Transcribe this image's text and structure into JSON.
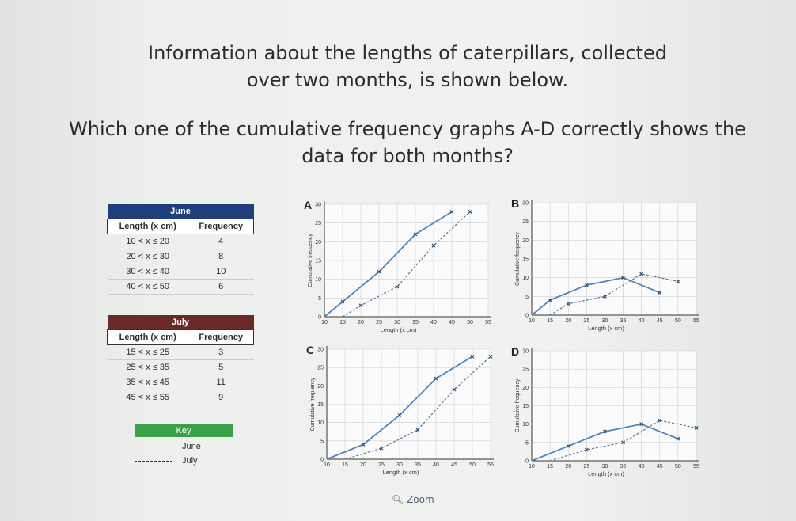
{
  "intro": "Information about the lengths of caterpillars, collected over two months, is shown below.",
  "prompt": "Which one of the cumulative frequency graphs A-D correctly shows the data for both months?",
  "tables": [
    {
      "title": "June",
      "headers": [
        "Length (x cm)",
        "Frequency"
      ],
      "color": "#1f3f7a",
      "rows": [
        [
          "10 < x ≤ 20",
          4
        ],
        [
          "20 < x ≤ 30",
          8
        ],
        [
          "30 < x ≤ 40",
          10
        ],
        [
          "40 < x ≤ 50",
          6
        ]
      ]
    },
    {
      "title": "July",
      "headers": [
        "Length (x cm)",
        "Frequency"
      ],
      "color": "#6b2a2a",
      "rows": [
        [
          "15 < x ≤ 25",
          3
        ],
        [
          "25 < x ≤ 35",
          5
        ],
        [
          "35 < x ≤ 45",
          11
        ],
        [
          "45 < x ≤ 55",
          9
        ]
      ]
    }
  ],
  "key": {
    "title": "Key",
    "color": "#3aa04a",
    "entries": [
      {
        "name": "June",
        "line_style": "solid"
      },
      {
        "name": "July",
        "line_style": "dashed"
      }
    ]
  },
  "graphs": [
    {
      "label": "A",
      "ylabel": "Cumulative frequency",
      "xlabel": "Length (x cm)",
      "xlim": [
        10,
        55
      ],
      "ylim": [
        0,
        30
      ],
      "xticks": [
        10,
        15,
        20,
        25,
        30,
        35,
        40,
        45,
        50,
        55
      ],
      "yticks": [
        0,
        5,
        10,
        15,
        20,
        25,
        30
      ],
      "series": [
        {
          "name": "June",
          "color": "#4f86b8",
          "line_style": "solid",
          "x": [
            10,
            15,
            25,
            35,
            45
          ],
          "values": [
            0,
            4,
            12,
            22,
            28
          ]
        },
        {
          "name": "July",
          "color": "#60748a",
          "line_style": "dashed",
          "x": [
            15,
            20,
            30,
            40,
            50
          ],
          "values": [
            0,
            3,
            8,
            19,
            28
          ]
        }
      ]
    },
    {
      "label": "B",
      "ylabel": "Cumulative frequency",
      "xlabel": "Length (x cm)",
      "xlim": [
        10,
        55
      ],
      "ylim": [
        0,
        30
      ],
      "xticks": [
        10,
        15,
        20,
        25,
        30,
        35,
        40,
        45,
        50,
        55
      ],
      "yticks": [
        0,
        5,
        10,
        15,
        20,
        25,
        30
      ],
      "series": [
        {
          "name": "June",
          "color": "#4f86b8",
          "line_style": "solid",
          "x": [
            10,
            15,
            25,
            35,
            45
          ],
          "values": [
            0,
            4,
            8,
            10,
            6
          ]
        },
        {
          "name": "July",
          "color": "#60748a",
          "line_style": "dashed",
          "x": [
            15,
            20,
            30,
            40,
            50
          ],
          "values": [
            0,
            3,
            5,
            11,
            9
          ]
        }
      ]
    },
    {
      "label": "C",
      "ylabel": "Cumulative frequency",
      "xlabel": "Length (x cm)",
      "xlim": [
        10,
        55
      ],
      "ylim": [
        0,
        30
      ],
      "xticks": [
        10,
        15,
        20,
        25,
        30,
        35,
        40,
        45,
        50,
        55
      ],
      "yticks": [
        0,
        5,
        10,
        15,
        20,
        25,
        30
      ],
      "series": [
        {
          "name": "June",
          "color": "#4f86b8",
          "line_style": "solid",
          "x": [
            10,
            20,
            30,
            40,
            50
          ],
          "values": [
            0,
            4,
            12,
            22,
            28
          ]
        },
        {
          "name": "July",
          "color": "#60748a",
          "line_style": "dashed",
          "x": [
            15,
            25,
            35,
            45,
            55
          ],
          "values": [
            0,
            3,
            8,
            19,
            28
          ]
        }
      ]
    },
    {
      "label": "D",
      "ylabel": "Cumulative frequency",
      "xlabel": "Length (x cm)",
      "xlim": [
        10,
        55
      ],
      "ylim": [
        0,
        30
      ],
      "xticks": [
        10,
        15,
        20,
        25,
        30,
        35,
        40,
        45,
        50,
        55
      ],
      "yticks": [
        0,
        5,
        10,
        15,
        20,
        25,
        30
      ],
      "series": [
        {
          "name": "June",
          "color": "#4f86b8",
          "line_style": "solid",
          "x": [
            10,
            20,
            30,
            40,
            50
          ],
          "values": [
            0,
            4,
            8,
            10,
            6
          ]
        },
        {
          "name": "July",
          "color": "#60748a",
          "line_style": "dashed",
          "x": [
            15,
            25,
            35,
            45,
            55
          ],
          "values": [
            0,
            3,
            5,
            11,
            9
          ]
        }
      ]
    }
  ],
  "zoom": "Zoom"
}
